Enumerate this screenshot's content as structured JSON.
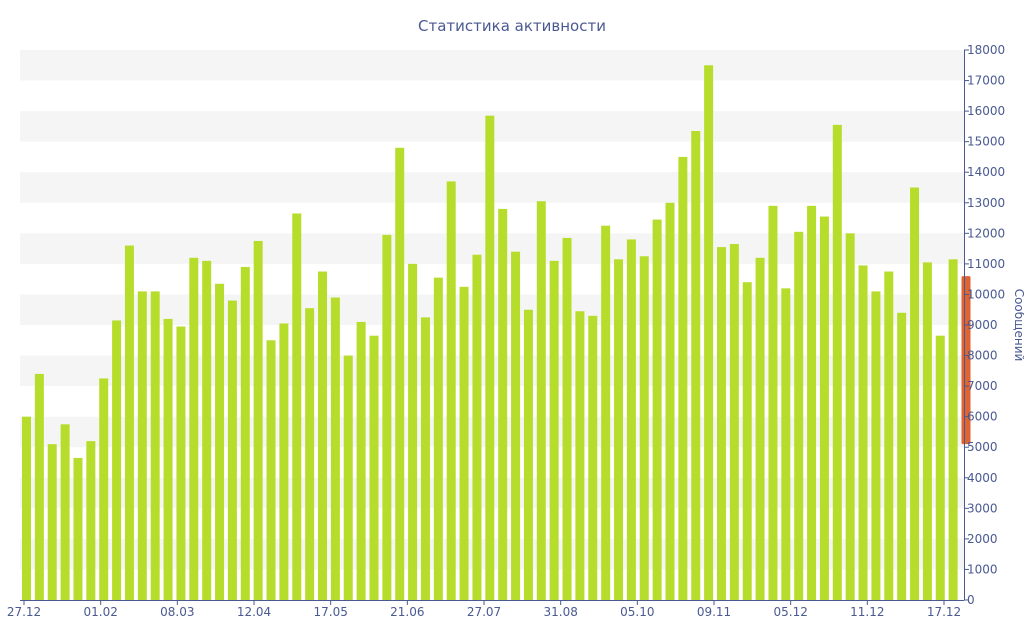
{
  "chart_data": {
    "type": "bar",
    "title": "Статистика активности",
    "ylabel": "Сообщений",
    "xlabel": "",
    "ylim": [
      0,
      18000
    ],
    "y_ticks": [
      0,
      1000,
      2000,
      3000,
      4000,
      5000,
      6000,
      7000,
      8000,
      9000,
      10000,
      11000,
      12000,
      13000,
      14000,
      15000,
      16000,
      17000,
      18000
    ],
    "x_tick_labels": [
      "27.12",
      "01.02",
      "08.03",
      "12.04",
      "17.05",
      "21.06",
      "27.07",
      "31.08",
      "05.10",
      "09.11",
      "05.12",
      "11.12",
      "17.12"
    ],
    "values": [
      6000,
      7400,
      5100,
      5750,
      4650,
      5200,
      7250,
      9150,
      11600,
      10100,
      10100,
      9200,
      8950,
      11200,
      11100,
      10350,
      9800,
      10900,
      11750,
      8500,
      9050,
      12650,
      9550,
      10750,
      9900,
      8000,
      9100,
      8650,
      11950,
      14800,
      11000,
      9250,
      10550,
      13700,
      10250,
      11300,
      15850,
      12800,
      11400,
      9500,
      13050,
      11100,
      11850,
      9450,
      9300,
      12250,
      11150,
      11800,
      11250,
      12450,
      13000,
      14500,
      15350,
      17500,
      11550,
      11650,
      10400,
      11200,
      12900,
      10200,
      12050,
      12900,
      12550,
      15550,
      12000,
      10950,
      10100,
      10750,
      9400,
      13500,
      11050,
      8650,
      11150
    ],
    "current": {
      "low": 5100,
      "high": 10600
    },
    "colors": {
      "bar": "#b7dd2c",
      "current": "#e06432",
      "band": "#f5f5f5",
      "axis": "#4a5a91"
    },
    "grid": "alternating-bands",
    "y_axis_side": "right"
  }
}
